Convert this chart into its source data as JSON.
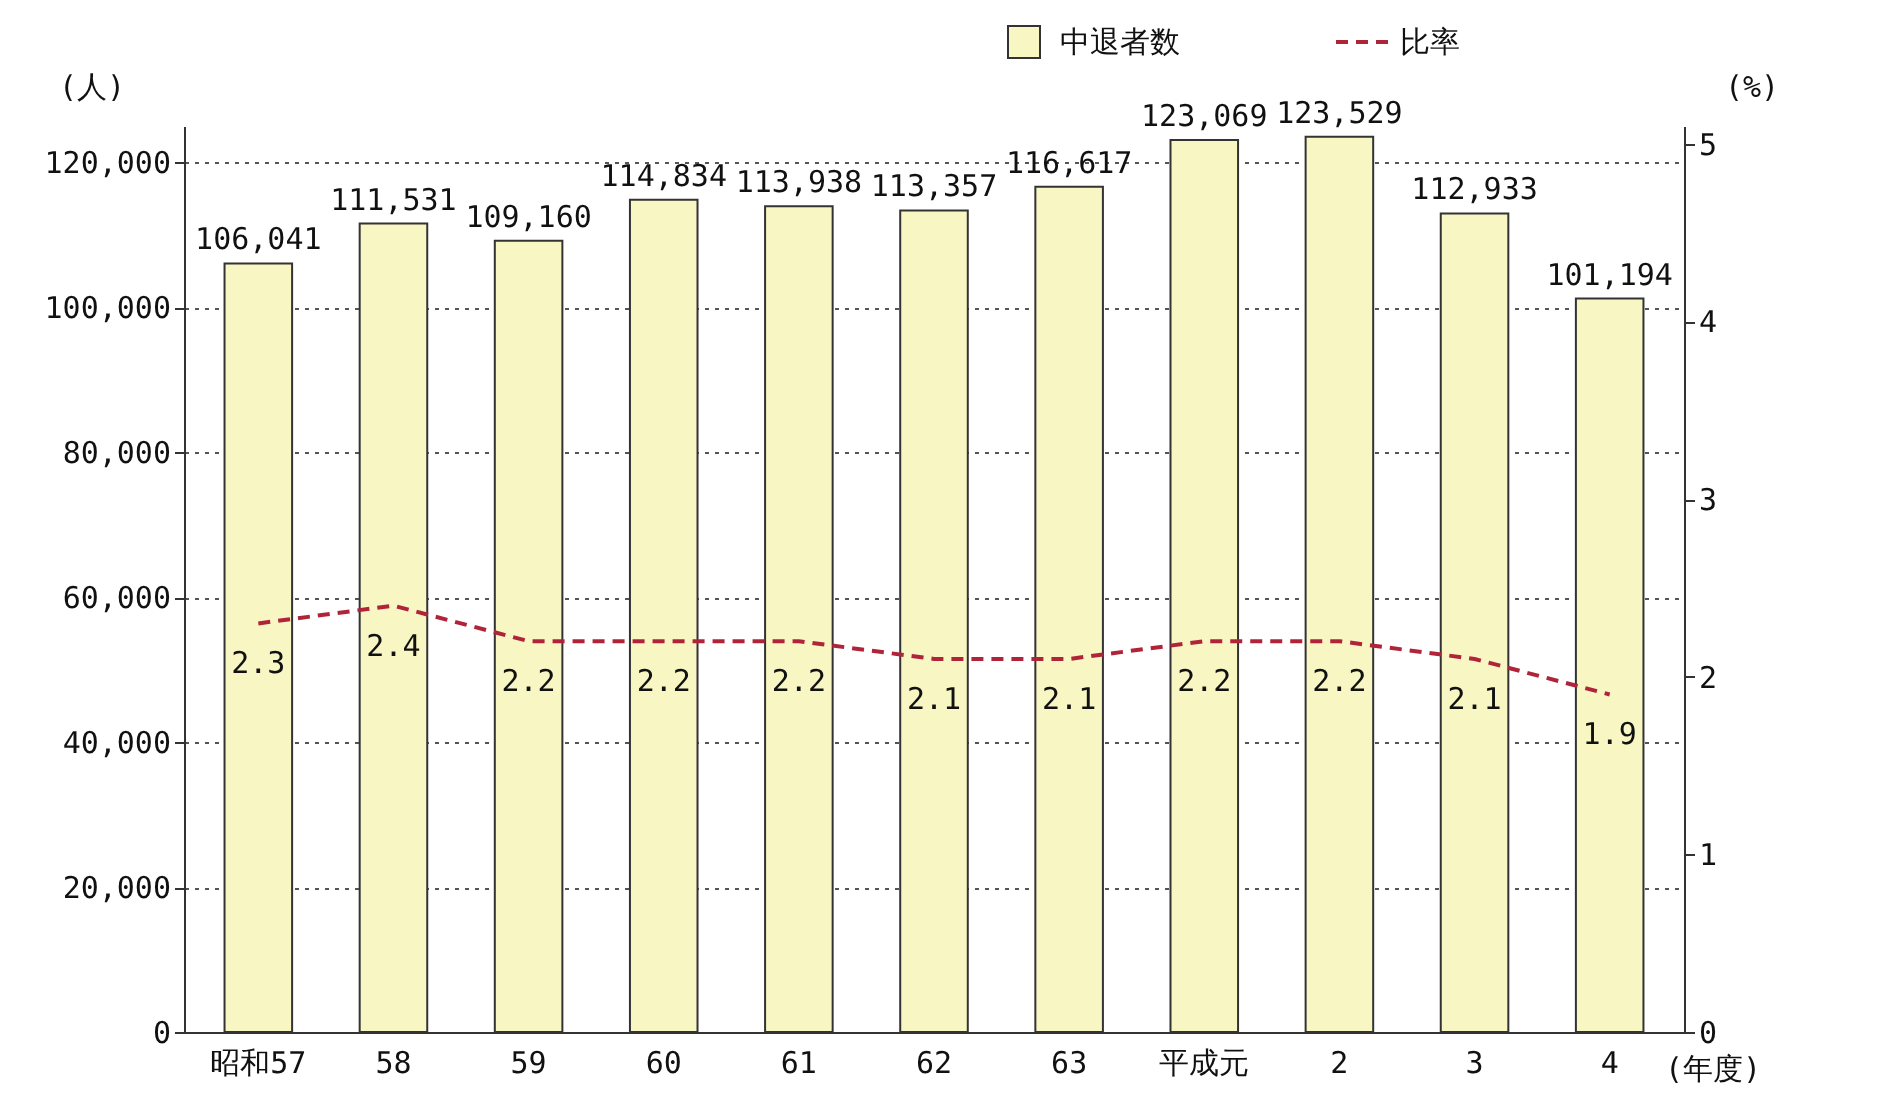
{
  "chart_data": {
    "type": "bar",
    "xlabel": "(年度)",
    "ylabel": "(人)",
    "y2label": "(%)",
    "categories": [
      "昭和57",
      "58",
      "59",
      "60",
      "61",
      "62",
      "63",
      "平成元",
      "2",
      "3",
      "4"
    ],
    "series": [
      {
        "name": "中退者数",
        "color": "#f8f6c2",
        "values": [
          106041,
          111531,
          109160,
          114834,
          113938,
          113357,
          116617,
          123069,
          123529,
          112933,
          101194
        ],
        "value_labels": [
          "106,041",
          "111,531",
          "109,160",
          "114,834",
          "113,938",
          "113,357",
          "116,617",
          "123,069",
          "123,529",
          "112,933",
          "101,194"
        ]
      },
      {
        "name": "比率",
        "type": "line",
        "axis": "y2",
        "color": "#b0243a",
        "line_style": "dashed",
        "marker": "none",
        "values": [
          2.3,
          2.4,
          2.2,
          2.2,
          2.2,
          2.1,
          2.1,
          2.2,
          2.2,
          2.1,
          1.9
        ],
        "value_labels": [
          "2.3",
          "2.4",
          "2.2",
          "2.2",
          "2.2",
          "2.1",
          "2.1",
          "2.2",
          "2.2",
          "2.1",
          "1.9"
        ]
      }
    ],
    "ylim": [
      0,
      125000
    ],
    "yticks": [
      0,
      {
        "value": 20000,
        "label": "20,000"
      },
      {
        "value": 40000,
        "label": "40,000"
      },
      {
        "value": 60000,
        "label": "60,000"
      },
      {
        "value": 80000,
        "label": "80,000"
      },
      {
        "value": 100000,
        "label": "100,000"
      },
      {
        "value": 120000,
        "label": "120,000"
      }
    ],
    "y2lim": [
      0,
      5.1
    ],
    "y2ticks": [
      0,
      1,
      2,
      3,
      4,
      5
    ],
    "grid": "y",
    "legend": "top right"
  }
}
